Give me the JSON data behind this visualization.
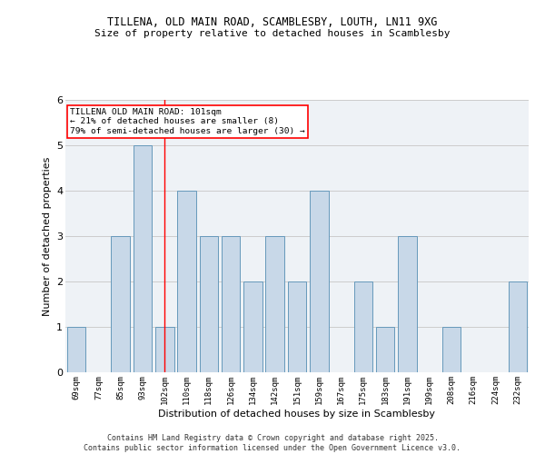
{
  "title1": "TILLENA, OLD MAIN ROAD, SCAMBLESBY, LOUTH, LN11 9XG",
  "title2": "Size of property relative to detached houses in Scamblesby",
  "xlabel": "Distribution of detached houses by size in Scamblesby",
  "ylabel": "Number of detached properties",
  "categories": [
    "69sqm",
    "77sqm",
    "85sqm",
    "93sqm",
    "102sqm",
    "110sqm",
    "118sqm",
    "126sqm",
    "134sqm",
    "142sqm",
    "151sqm",
    "159sqm",
    "167sqm",
    "175sqm",
    "183sqm",
    "191sqm",
    "199sqm",
    "208sqm",
    "216sqm",
    "224sqm",
    "232sqm"
  ],
  "values": [
    1,
    0,
    3,
    5,
    1,
    4,
    3,
    3,
    2,
    3,
    2,
    4,
    0,
    2,
    1,
    3,
    0,
    1,
    0,
    0,
    2
  ],
  "bar_color": "#c8d8e8",
  "bar_edge_color": "#6699bb",
  "reference_line_index": 4,
  "reference_label": "TILLENA OLD MAIN ROAD: 101sqm",
  "annotation_line2": "← 21% of detached houses are smaller (8)",
  "annotation_line3": "79% of semi-detached houses are larger (30) →",
  "annotation_box_color": "white",
  "annotation_border_color": "red",
  "ylim": [
    0,
    6
  ],
  "yticks": [
    0,
    1,
    2,
    3,
    4,
    5,
    6
  ],
  "grid_color": "#cccccc",
  "bg_color": "#eef2f6",
  "footer1": "Contains HM Land Registry data © Crown copyright and database right 2025.",
  "footer2": "Contains public sector information licensed under the Open Government Licence v3.0."
}
